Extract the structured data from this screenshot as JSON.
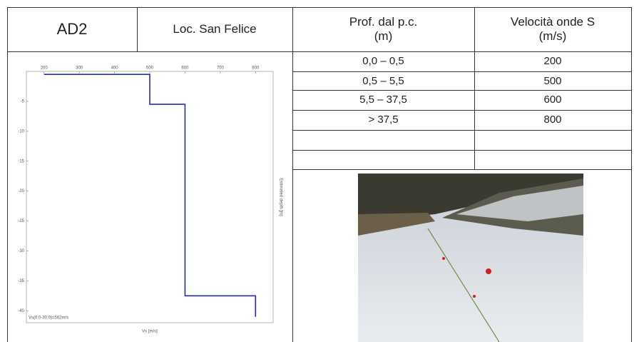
{
  "table": {
    "header": [
      "AD2",
      "Loc. San Felice",
      [
        "Prof. dal p.c.",
        "(m)"
      ],
      [
        "Velocità onde S",
        "(m/s)"
      ]
    ],
    "rows": [
      [
        "0,0 – 0,5",
        "200"
      ],
      [
        "0,5 – 5,5",
        "500"
      ],
      [
        "5,5 – 37,5",
        "600"
      ],
      [
        "> 37,5",
        "800"
      ]
    ]
  },
  "chart_data": {
    "type": "line",
    "color": "#2a2ab8",
    "x": [
      200,
      500,
      500,
      600,
      600,
      800,
      800
    ],
    "y": [
      -0.5,
      -0.5,
      -5.5,
      -5.5,
      -37.5,
      -37.5,
      -41
    ],
    "xlim": [
      150,
      850
    ],
    "xticks": [
      200,
      300,
      400,
      500,
      600,
      700,
      800
    ],
    "ylim": [
      -42,
      0
    ],
    "yticks": [
      -5,
      -10,
      -15,
      -20,
      -25,
      -30,
      -35,
      -40
    ],
    "xlabel": "Vs [m/s]",
    "ylabel": "Estimated depth [m]",
    "annotation": "Vs(0.0-30.0)=562m/s"
  }
}
